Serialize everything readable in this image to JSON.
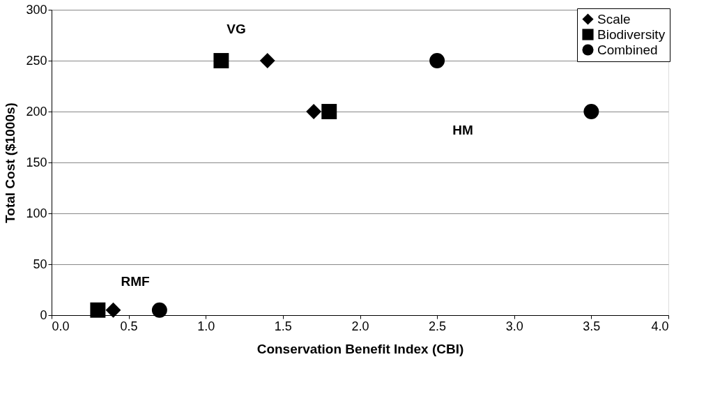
{
  "chart_data": {
    "type": "scatter",
    "xlabel": "Conservation Benefit Index (CBI)",
    "ylabel": "Total Cost ($1000s)",
    "series": [
      {
        "name": "Scale",
        "color": "#000000",
        "marker": "diamond",
        "x": [
          0.4,
          1.4,
          1.7
        ],
        "values": [
          5,
          250,
          200
        ]
      },
      {
        "name": "Biodiversity",
        "color": "#000000",
        "marker": "square",
        "x": [
          0.3,
          1.1,
          1.8
        ],
        "values": [
          5,
          250,
          200
        ]
      },
      {
        "name": "Combined",
        "color": "#000000",
        "marker": "circle",
        "x": [
          0.7,
          2.5,
          3.5
        ],
        "values": [
          5,
          250,
          200
        ]
      }
    ],
    "annotations": [
      "VG",
      "HM",
      "RMF"
    ],
    "xlim": [
      0,
      4
    ],
    "xticks": [
      {
        "value": 0,
        "label": "0.0"
      },
      {
        "value": 0.5,
        "label": "0.5"
      },
      {
        "value": 1,
        "label": "1.0"
      },
      {
        "value": 1.5,
        "label": "1.5"
      },
      {
        "value": 2,
        "label": "2.0"
      },
      {
        "value": 2.5,
        "label": "2.5"
      },
      {
        "value": 3,
        "label": "3.0"
      },
      {
        "value": 3.5,
        "label": "3.5"
      },
      {
        "value": 4,
        "label": "4.0"
      }
    ],
    "ylim": [
      0,
      300
    ],
    "yticks": [
      0,
      50,
      100,
      150,
      200,
      250,
      300
    ],
    "grid": "y",
    "legend": "top right"
  }
}
